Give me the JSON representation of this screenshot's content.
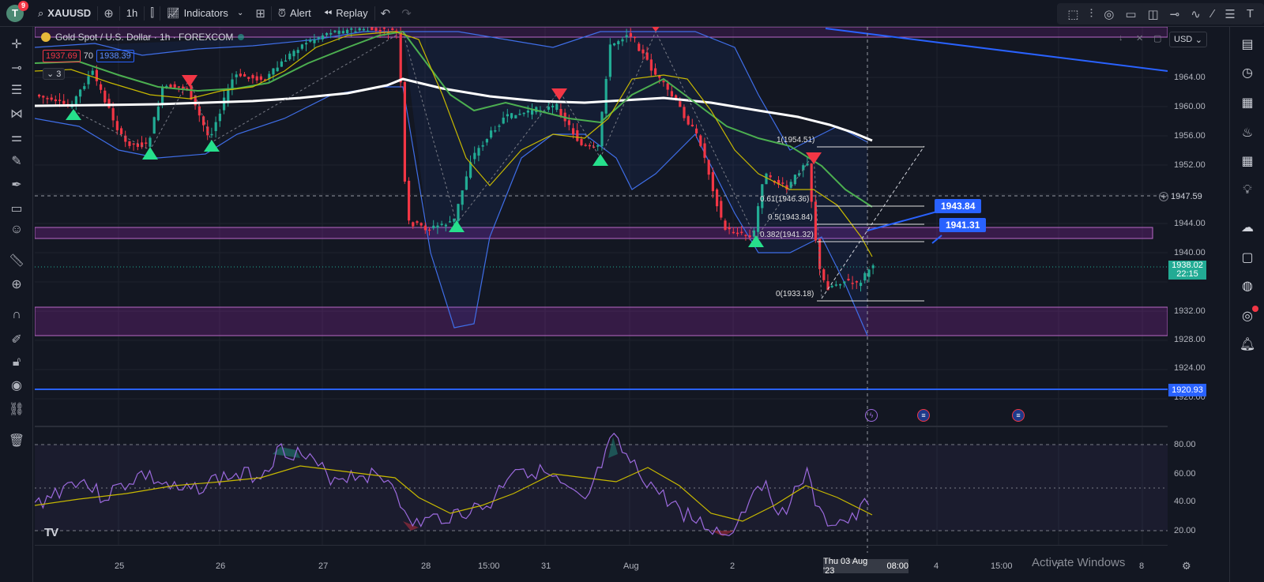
{
  "toolbar": {
    "avatar_letter": "T",
    "notifications": "9",
    "symbol": "XAUUSD",
    "interval": "1h",
    "indicators_label": "Indicators",
    "alert_label": "Alert",
    "replay_label": "Replay"
  },
  "legend": {
    "title": "Gold Spot / U.S. Dollar · 1h · FOREXCOM",
    "bid": "1937.69",
    "spread": "70",
    "ask": "1938.39",
    "collapsed_count": "3"
  },
  "currency": "USD",
  "price_axis": {
    "ticks": [
      "1964.00",
      "1960.00",
      "1956.00",
      "1952.00",
      "1944.00",
      "1940.00",
      "1932.00",
      "1928.00",
      "1924.00",
      "1920.00"
    ],
    "crosshair_price": "1947.59",
    "current_price": "1938.02",
    "countdown": "22:15",
    "support_price": "1920.93"
  },
  "rsi_axis": {
    "ticks": [
      "80.00",
      "60.00",
      "40.00",
      "20.00"
    ]
  },
  "time_axis": {
    "labels": [
      "25",
      "26",
      "27",
      "28",
      "15:00",
      "31",
      "Aug",
      "2",
      "4",
      "15:00",
      "7",
      "8"
    ],
    "crosshair_time": "Thu 03 Aug '23",
    "crosshair_hour": "08:00"
  },
  "fibonacci": {
    "levels": [
      {
        "label": "1(1954.51)"
      },
      {
        "label": "0.61(1946.36)"
      },
      {
        "label": "0.5(1943.84)"
      },
      {
        "label": "0.382(1941.32)"
      },
      {
        "label": "0(1933.18)"
      }
    ]
  },
  "callouts": {
    "upper": "1943.84",
    "lower": "1941.31"
  },
  "watermark": "Activate Windows",
  "logo": "TV",
  "colors": {
    "up": "#22ab94",
    "down": "#f23645",
    "zone": "#9c27b0",
    "blue_line": "#2962ff",
    "background": "#131722"
  },
  "chart_data": {
    "type": "line",
    "price_range": [
      1916,
      1968
    ],
    "rsi_range": [
      15,
      85
    ]
  }
}
